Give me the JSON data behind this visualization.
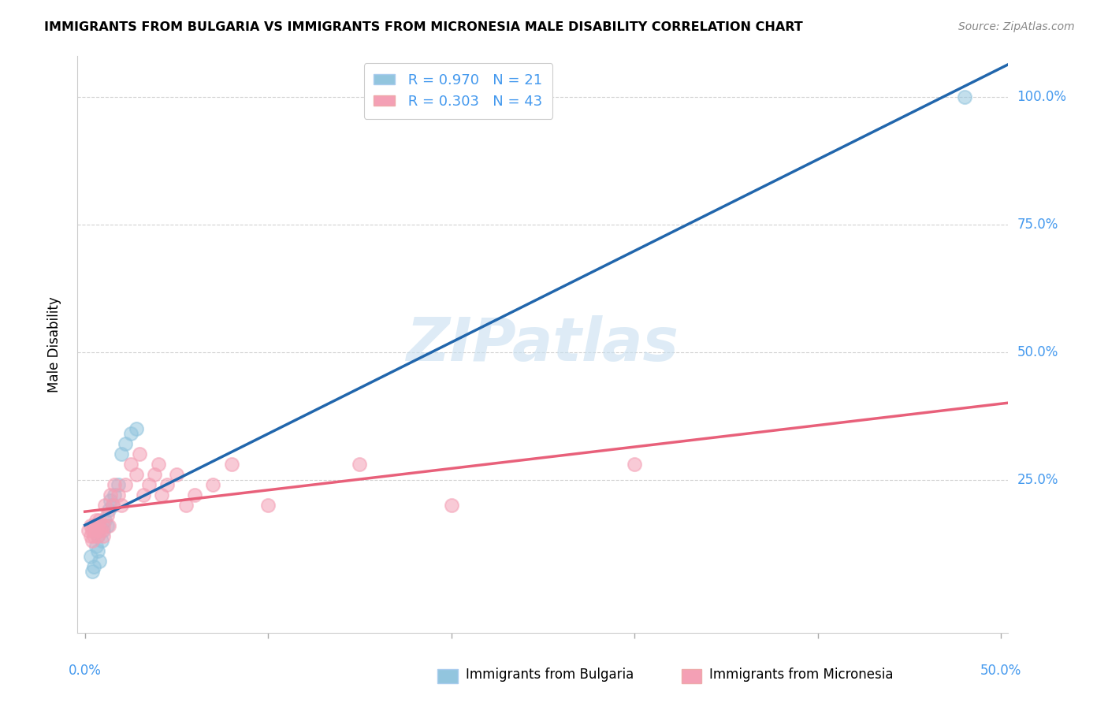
{
  "title": "IMMIGRANTS FROM BULGARIA VS IMMIGRANTS FROM MICRONESIA MALE DISABILITY CORRELATION CHART",
  "source": "Source: ZipAtlas.com",
  "ylabel": "Male Disability",
  "watermark": "ZIPatlas",
  "bulgaria_color": "#92c5de",
  "micronesia_color": "#f4a0b5",
  "bulgaria_line_color": "#2166ac",
  "micronesia_line_color": "#e8607a",
  "axis_label_color": "#4499ee",
  "bulgaria_R": 0.97,
  "bulgaria_N": 21,
  "micronesia_R": 0.303,
  "micronesia_N": 43,
  "xlim": [
    -0.004,
    0.504
  ],
  "ylim": [
    -0.05,
    1.08
  ],
  "ytick_vals": [
    0.25,
    0.5,
    0.75,
    1.0
  ],
  "ytick_labels": [
    "25.0%",
    "50.0%",
    "75.0%",
    "100.0%"
  ],
  "xtick_vals": [
    0.0,
    0.1,
    0.2,
    0.3,
    0.4,
    0.5
  ],
  "bulgaria_scatter_x": [
    0.003,
    0.004,
    0.005,
    0.006,
    0.007,
    0.007,
    0.008,
    0.009,
    0.01,
    0.011,
    0.012,
    0.013,
    0.014,
    0.015,
    0.016,
    0.018,
    0.02,
    0.022,
    0.025,
    0.028,
    0.48
  ],
  "bulgaria_scatter_y": [
    0.1,
    0.07,
    0.08,
    0.12,
    0.14,
    0.11,
    0.09,
    0.13,
    0.15,
    0.17,
    0.16,
    0.19,
    0.21,
    0.2,
    0.22,
    0.24,
    0.3,
    0.32,
    0.34,
    0.35,
    1.0
  ],
  "micronesia_scatter_x": [
    0.002,
    0.003,
    0.003,
    0.004,
    0.004,
    0.005,
    0.005,
    0.006,
    0.006,
    0.007,
    0.007,
    0.008,
    0.008,
    0.009,
    0.01,
    0.01,
    0.011,
    0.012,
    0.013,
    0.014,
    0.015,
    0.016,
    0.018,
    0.02,
    0.022,
    0.025,
    0.028,
    0.03,
    0.032,
    0.035,
    0.038,
    0.04,
    0.042,
    0.045,
    0.05,
    0.055,
    0.06,
    0.07,
    0.08,
    0.1,
    0.15,
    0.2,
    0.3
  ],
  "micronesia_scatter_y": [
    0.15,
    0.14,
    0.16,
    0.13,
    0.15,
    0.14,
    0.16,
    0.15,
    0.17,
    0.14,
    0.16,
    0.15,
    0.17,
    0.15,
    0.16,
    0.14,
    0.2,
    0.18,
    0.16,
    0.22,
    0.2,
    0.24,
    0.22,
    0.2,
    0.24,
    0.28,
    0.26,
    0.3,
    0.22,
    0.24,
    0.26,
    0.28,
    0.22,
    0.24,
    0.26,
    0.2,
    0.22,
    0.24,
    0.28,
    0.2,
    0.28,
    0.2,
    0.28
  ],
  "bulgaria_line_x0": 0.0,
  "bulgaria_line_y0": 0.02,
  "bulgaria_line_x1": 0.504,
  "bulgaria_line_y1": 1.04,
  "micronesia_line_x0": 0.0,
  "micronesia_line_y0": 0.145,
  "micronesia_line_x1": 0.504,
  "micronesia_line_y1": 0.305
}
